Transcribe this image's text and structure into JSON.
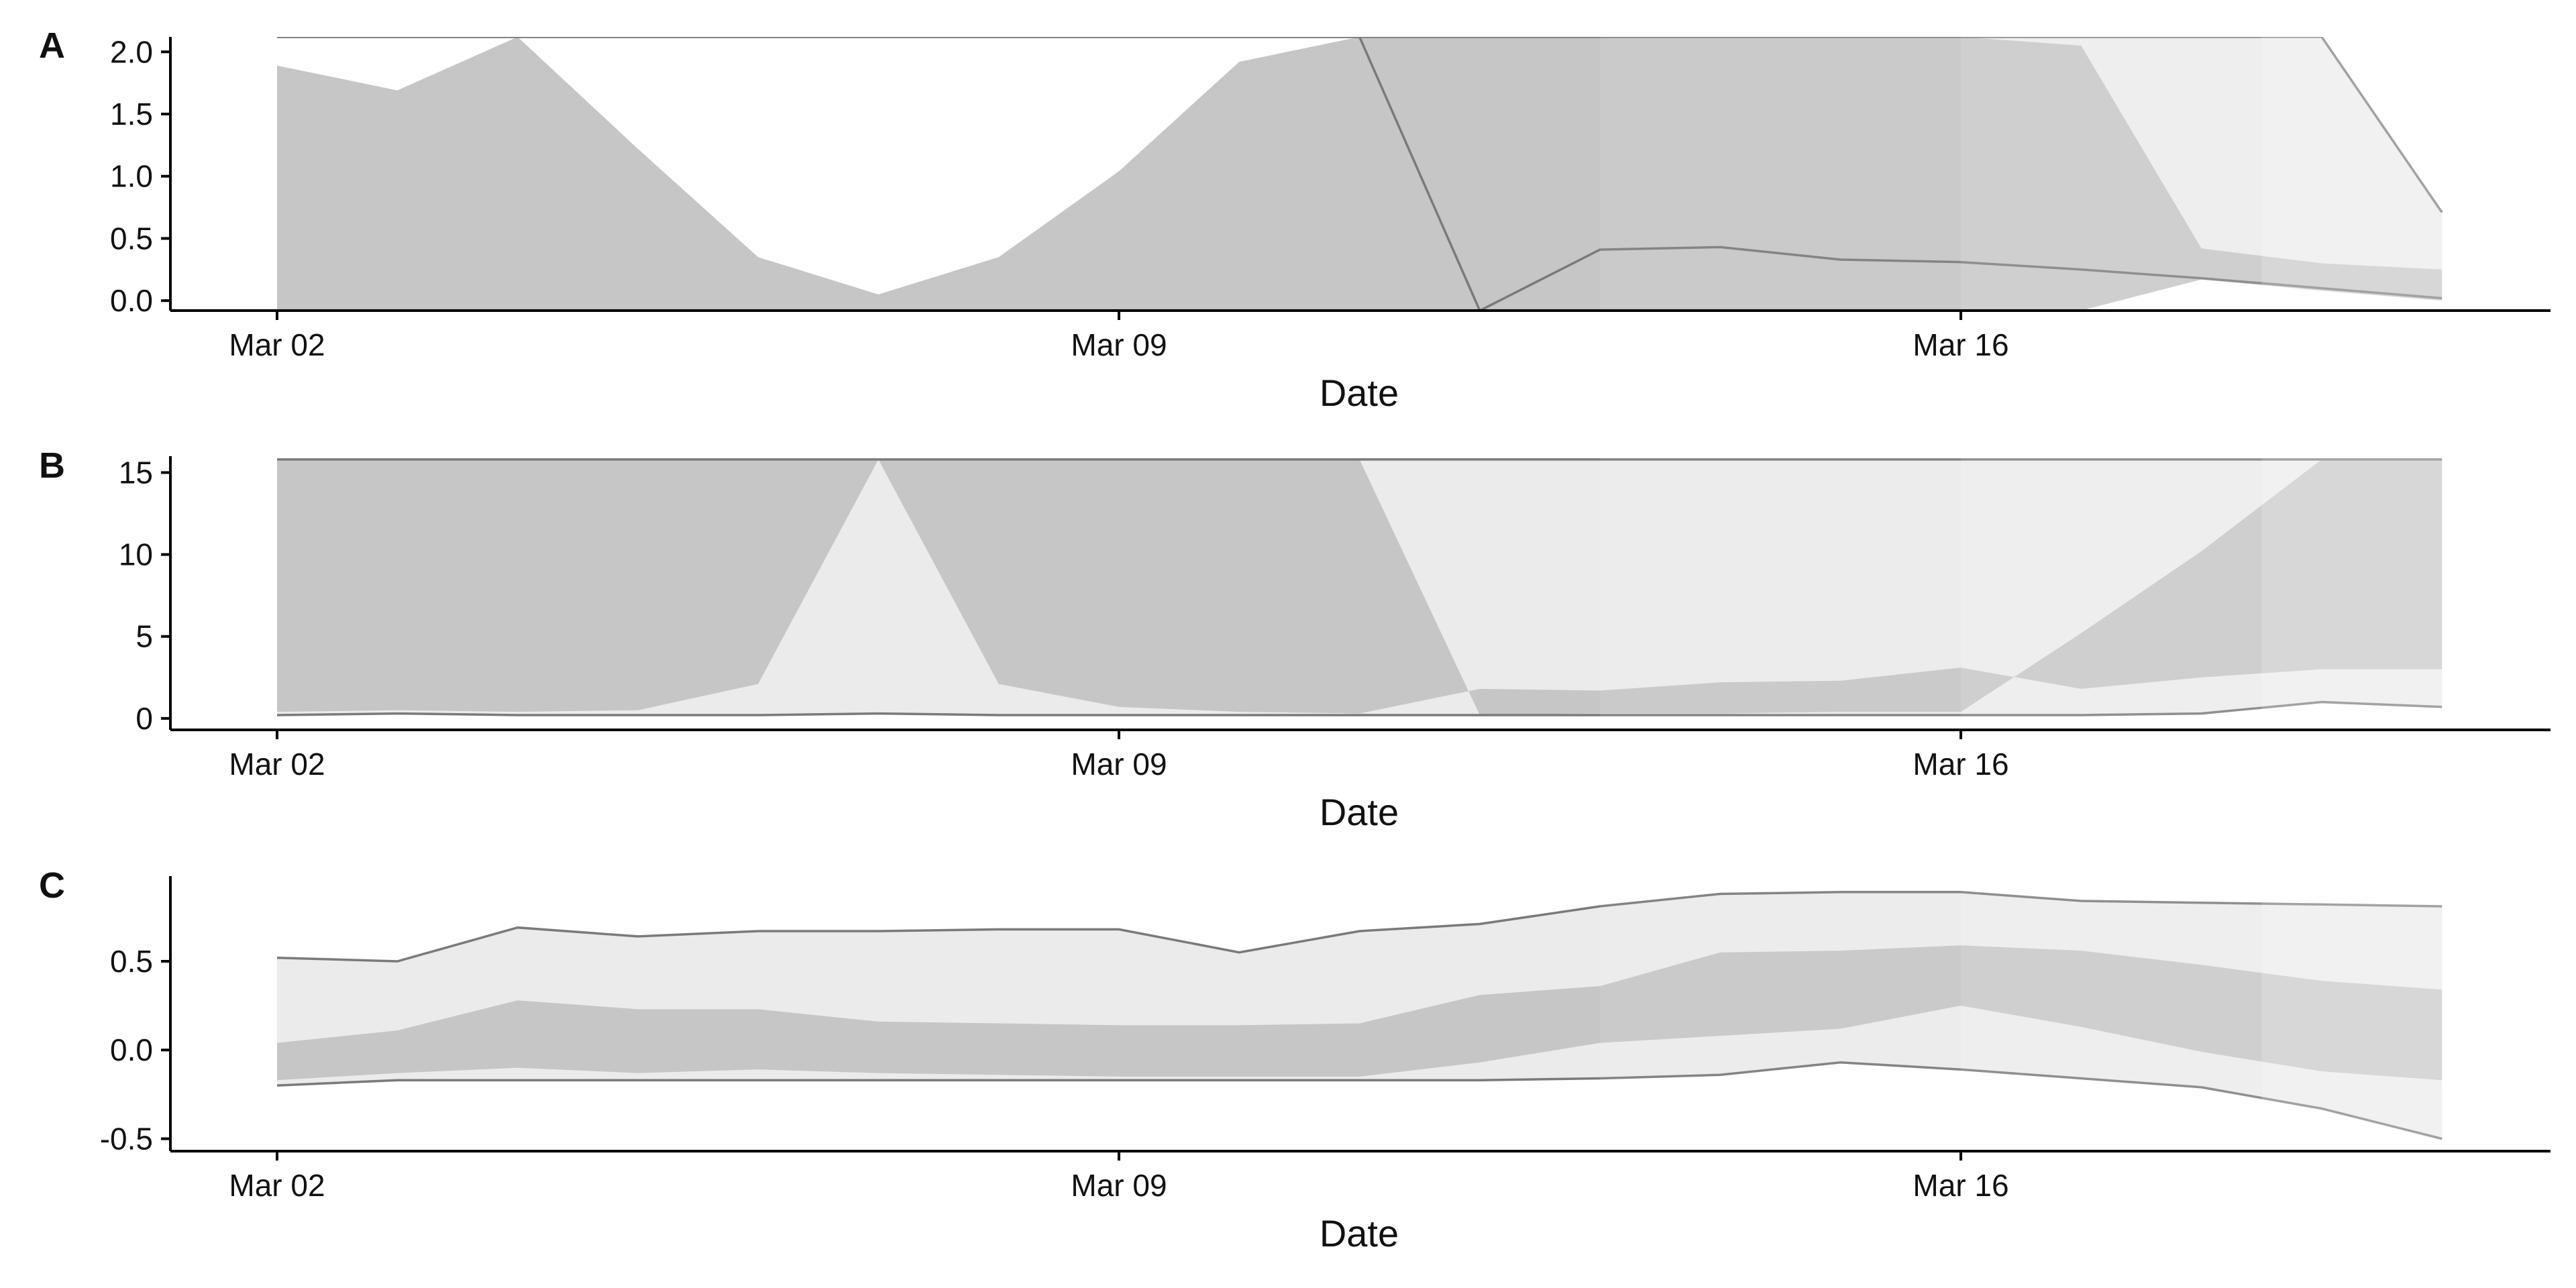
{
  "panels": [
    {
      "tag": "A",
      "xlabel": "Date",
      "x_ticks": [
        "Mar 02",
        "Mar 09",
        "Mar 16"
      ],
      "y_tick_labels": [
        "0.0",
        "0.5",
        "1.0",
        "1.5",
        "2.0"
      ]
    },
    {
      "tag": "B",
      "xlabel": "Date",
      "x_ticks": [
        "Mar 02",
        "Mar 09",
        "Mar 16"
      ],
      "y_tick_labels": [
        "0",
        "5",
        "10",
        "15"
      ]
    },
    {
      "tag": "C",
      "xlabel": "Date",
      "x_ticks": [
        "Mar 02",
        "Mar 09",
        "Mar 16"
      ],
      "y_tick_labels": [
        "-0.5",
        "0.0",
        "0.5"
      ]
    }
  ],
  "colors": {
    "outer_band": "#ebebeb",
    "inner_band": "#c6c6c6",
    "bound_line": "#7a7a7a",
    "axis": "#000000",
    "fade_light": "#f3f3f3"
  },
  "chart_data": [
    {
      "type": "area",
      "panel": "A",
      "x": [
        "2020-03-02",
        "2020-03-03",
        "2020-03-04",
        "2020-03-05",
        "2020-03-06",
        "2020-03-07",
        "2020-03-08",
        "2020-03-09",
        "2020-03-10",
        "2020-03-11",
        "2020-03-12",
        "2020-03-13",
        "2020-03-14",
        "2020-03-15",
        "2020-03-16",
        "2020-03-17",
        "2020-03-18",
        "2020-03-19",
        "2020-03-20"
      ],
      "ylim": [
        -0.08,
        2.12
      ],
      "y_ticks": [
        0,
        0.5,
        1.0,
        1.5,
        2.0
      ],
      "x_ticks": [
        "2020-03-02",
        "2020-03-09",
        "2020-03-16"
      ],
      "xlabel": "Date",
      "grid": false,
      "series": [
        {
          "role": "outer_lower",
          "values": [
            2.12,
            2.12,
            2.12,
            2.12,
            2.12,
            2.12,
            2.12,
            2.12,
            2.12,
            2.12,
            -0.08,
            0.41,
            0.43,
            0.33,
            0.31,
            0.25,
            0.18,
            0.1,
            0.02
          ]
        },
        {
          "role": "inner_lower",
          "values": [
            1.89,
            1.69,
            2.12,
            1.22,
            0.35,
            0.05,
            0.35,
            1.04,
            1.92,
            2.12,
            2.12,
            2.12,
            2.12,
            2.12,
            2.12,
            2.05,
            0.42,
            0.3,
            0.25
          ]
        },
        {
          "role": "inner_upper",
          "values": [
            -0.08,
            -0.08,
            -0.08,
            -0.08,
            -0.08,
            -0.08,
            -0.08,
            -0.08,
            -0.08,
            -0.08,
            -0.08,
            -0.08,
            -0.08,
            -0.08,
            -0.08,
            -0.08,
            0.17,
            0.08,
            0.0
          ]
        },
        {
          "role": "outer_upper",
          "values": [
            2.12,
            2.12,
            2.12,
            2.12,
            2.12,
            2.12,
            2.12,
            2.12,
            2.12,
            2.12,
            2.12,
            2.12,
            2.12,
            2.12,
            2.12,
            2.12,
            2.12,
            2.12,
            0.71
          ]
        }
      ]
    },
    {
      "type": "area",
      "panel": "B",
      "x": [
        "2020-03-02",
        "2020-03-03",
        "2020-03-04",
        "2020-03-05",
        "2020-03-06",
        "2020-03-07",
        "2020-03-08",
        "2020-03-09",
        "2020-03-10",
        "2020-03-11",
        "2020-03-12",
        "2020-03-13",
        "2020-03-14",
        "2020-03-15",
        "2020-03-16",
        "2020-03-17",
        "2020-03-18",
        "2020-03-19",
        "2020-03-20"
      ],
      "ylim": [
        -0.7,
        16.0
      ],
      "y_ticks": [
        0,
        5,
        10,
        15
      ],
      "x_ticks": [
        "2020-03-02",
        "2020-03-09",
        "2020-03-16"
      ],
      "xlabel": "Date",
      "grid": false,
      "series": [
        {
          "role": "outer_lower",
          "values": [
            0.2,
            0.3,
            0.2,
            0.2,
            0.2,
            0.3,
            0.2,
            0.2,
            0.2,
            0.2,
            0.2,
            0.2,
            0.2,
            0.2,
            0.2,
            0.2,
            0.3,
            1.0,
            0.7
          ]
        },
        {
          "role": "inner_lower",
          "values": [
            0.4,
            0.5,
            0.4,
            0.5,
            2.1,
            15.8,
            2.1,
            0.7,
            0.4,
            0.3,
            1.8,
            1.7,
            2.2,
            2.3,
            3.1,
            1.8,
            2.5,
            3.0,
            3.0
          ]
        },
        {
          "role": "inner_upper",
          "values": [
            15.8,
            15.8,
            15.8,
            15.8,
            15.8,
            15.8,
            15.8,
            15.8,
            15.8,
            15.8,
            0.2,
            0.3,
            0.3,
            0.4,
            0.4,
            5.2,
            10.2,
            15.8,
            15.8
          ]
        },
        {
          "role": "outer_upper",
          "values": [
            15.8,
            15.8,
            15.8,
            15.8,
            15.8,
            15.8,
            15.8,
            15.8,
            15.8,
            15.8,
            15.8,
            15.8,
            15.8,
            15.8,
            15.8,
            15.8,
            15.8,
            15.8,
            15.8
          ]
        }
      ]
    },
    {
      "type": "area",
      "panel": "C",
      "x": [
        "2020-03-02",
        "2020-03-03",
        "2020-03-04",
        "2020-03-05",
        "2020-03-06",
        "2020-03-07",
        "2020-03-08",
        "2020-03-09",
        "2020-03-10",
        "2020-03-11",
        "2020-03-12",
        "2020-03-13",
        "2020-03-14",
        "2020-03-15",
        "2020-03-16",
        "2020-03-17",
        "2020-03-18",
        "2020-03-19",
        "2020-03-20"
      ],
      "ylim": [
        -0.57,
        0.98
      ],
      "y_ticks": [
        -0.5,
        0.0,
        0.5
      ],
      "x_ticks": [
        "2020-03-02",
        "2020-03-09",
        "2020-03-16"
      ],
      "xlabel": "Date",
      "grid": false,
      "series": [
        {
          "role": "outer_lower",
          "values": [
            -0.2,
            -0.17,
            -0.17,
            -0.17,
            -0.17,
            -0.17,
            -0.17,
            -0.17,
            -0.17,
            -0.17,
            -0.17,
            -0.16,
            -0.14,
            -0.07,
            -0.11,
            -0.16,
            -0.21,
            -0.33,
            -0.5
          ]
        },
        {
          "role": "inner_lower",
          "values": [
            -0.17,
            -0.13,
            -0.1,
            -0.13,
            -0.11,
            -0.13,
            -0.14,
            -0.15,
            -0.15,
            -0.15,
            -0.07,
            0.04,
            0.08,
            0.12,
            0.25,
            0.13,
            -0.01,
            -0.12,
            -0.17
          ]
        },
        {
          "role": "inner_upper",
          "values": [
            0.04,
            0.11,
            0.28,
            0.23,
            0.23,
            0.16,
            0.15,
            0.14,
            0.14,
            0.15,
            0.31,
            0.36,
            0.55,
            0.56,
            0.59,
            0.56,
            0.48,
            0.39,
            0.34
          ]
        },
        {
          "role": "outer_upper",
          "values": [
            0.52,
            0.5,
            0.69,
            0.64,
            0.67,
            0.67,
            0.68,
            0.68,
            0.55,
            0.67,
            0.71,
            0.81,
            0.88,
            0.89,
            0.89,
            0.84,
            0.83,
            0.82,
            0.81
          ]
        }
      ]
    }
  ]
}
